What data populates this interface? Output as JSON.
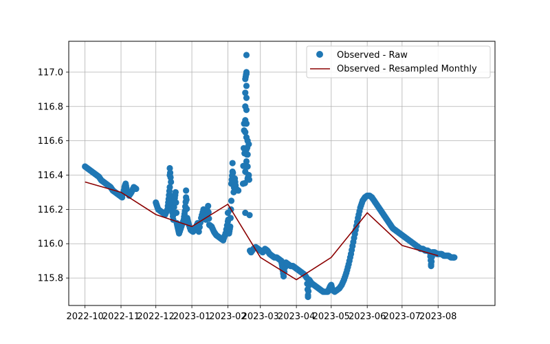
{
  "chart_data": {
    "type": "scatter",
    "title": "",
    "xlabel": "",
    "ylabel": "",
    "xlim": [
      "2022-09-17",
      "2023-09-19"
    ],
    "ylim": [
      115.64,
      117.18
    ],
    "grid": true,
    "legend_position": "top-right",
    "x_ticks": [
      "2022-10",
      "2022-11",
      "2022-12",
      "2023-01",
      "2023-02",
      "2023-03",
      "2023-04",
      "2023-05",
      "2023-06",
      "2023-07",
      "2023-08"
    ],
    "y_ticks": [
      "115.8",
      "116.0",
      "116.2",
      "116.4",
      "116.6",
      "116.8",
      "117.0"
    ],
    "colors": {
      "raw": "#1f77b4",
      "resampled": "#8b0000",
      "grid": "#b0b0b0"
    },
    "series": [
      {
        "name": "Observed - Raw",
        "kind": "scatter",
        "points": [
          [
            "2022-10-01",
            116.45
          ],
          [
            "2022-10-03",
            116.44
          ],
          [
            "2022-10-05",
            116.43
          ],
          [
            "2022-10-07",
            116.42
          ],
          [
            "2022-10-09",
            116.41
          ],
          [
            "2022-10-11",
            116.4
          ],
          [
            "2022-10-13",
            116.39
          ],
          [
            "2022-10-15",
            116.37
          ],
          [
            "2022-10-17",
            116.36
          ],
          [
            "2022-10-19",
            116.35
          ],
          [
            "2022-10-21",
            116.34
          ],
          [
            "2022-10-23",
            116.33
          ],
          [
            "2022-10-25",
            116.31
          ],
          [
            "2022-10-27",
            116.3
          ],
          [
            "2022-10-29",
            116.29
          ],
          [
            "2022-10-31",
            116.28
          ],
          [
            "2022-11-02",
            116.27
          ],
          [
            "2022-11-04",
            116.33
          ],
          [
            "2022-11-05",
            116.35
          ],
          [
            "2022-11-06",
            116.31
          ],
          [
            "2022-11-08",
            116.28
          ],
          [
            "2022-11-10",
            116.3
          ],
          [
            "2022-11-12",
            116.33
          ],
          [
            "2022-11-14",
            116.32
          ],
          [
            "2022-12-01",
            116.24
          ],
          [
            "2022-12-02",
            116.22
          ],
          [
            "2022-12-03",
            116.2
          ],
          [
            "2022-12-05",
            116.19
          ],
          [
            "2022-12-07",
            116.18
          ],
          [
            "2022-12-09",
            116.17
          ],
          [
            "2022-12-11",
            116.2
          ],
          [
            "2022-12-12",
            116.26
          ],
          [
            "2022-12-13",
            116.33
          ],
          [
            "2022-12-13",
            116.4
          ],
          [
            "2022-12-13",
            116.44
          ],
          [
            "2022-12-14",
            116.36
          ],
          [
            "2022-12-14",
            116.28
          ],
          [
            "2022-12-15",
            116.2
          ],
          [
            "2022-12-16",
            116.14
          ],
          [
            "2022-12-17",
            116.25
          ],
          [
            "2022-12-18",
            116.3
          ],
          [
            "2022-12-19",
            116.12
          ],
          [
            "2022-12-20",
            116.09
          ],
          [
            "2022-12-21",
            116.06
          ],
          [
            "2022-12-23",
            116.1
          ],
          [
            "2022-12-25",
            116.14
          ],
          [
            "2022-12-26",
            116.19
          ],
          [
            "2022-12-27",
            116.27
          ],
          [
            "2022-12-27",
            116.31
          ],
          [
            "2022-12-28",
            116.15
          ],
          [
            "2022-12-29",
            116.12
          ],
          [
            "2022-12-31",
            116.08
          ],
          [
            "2023-01-02",
            116.07
          ],
          [
            "2023-01-04",
            116.09
          ],
          [
            "2023-01-06",
            116.12
          ],
          [
            "2023-01-07",
            116.07
          ],
          [
            "2023-01-09",
            116.15
          ],
          [
            "2023-01-11",
            116.2
          ],
          [
            "2023-01-13",
            116.14
          ],
          [
            "2023-01-15",
            116.22
          ],
          [
            "2023-01-16",
            116.11
          ],
          [
            "2023-01-18",
            116.1
          ],
          [
            "2023-01-20",
            116.07
          ],
          [
            "2023-01-22",
            116.05
          ],
          [
            "2023-01-24",
            116.04
          ],
          [
            "2023-01-26",
            116.03
          ],
          [
            "2023-01-28",
            116.02
          ],
          [
            "2023-01-30",
            116.06
          ],
          [
            "2023-02-01",
            116.13
          ],
          [
            "2023-02-01",
            116.18
          ],
          [
            "2023-02-02",
            116.06
          ],
          [
            "2023-02-03",
            116.1
          ],
          [
            "2023-02-04",
            116.25
          ],
          [
            "2023-02-04",
            116.35
          ],
          [
            "2023-02-05",
            116.42
          ],
          [
            "2023-02-05",
            116.47
          ],
          [
            "2023-02-06",
            116.3
          ],
          [
            "2023-02-07",
            116.38
          ],
          [
            "2023-02-08",
            116.32
          ],
          [
            "2023-02-10",
            116.31
          ],
          [
            "2023-02-14",
            116.35
          ],
          [
            "2023-02-15",
            116.66
          ],
          [
            "2023-02-15",
            116.7
          ],
          [
            "2023-02-16",
            116.18
          ],
          [
            "2023-02-16",
            116.42
          ],
          [
            "2023-02-16",
            116.65
          ],
          [
            "2023-02-16",
            116.72
          ],
          [
            "2023-02-16",
            116.8
          ],
          [
            "2023-02-16",
            116.88
          ],
          [
            "2023-02-16",
            116.96
          ],
          [
            "2023-02-17",
            117.0
          ],
          [
            "2023-02-17",
            117.1
          ],
          [
            "2023-02-17",
            116.99
          ],
          [
            "2023-02-17",
            116.92
          ],
          [
            "2023-02-17",
            116.85
          ],
          [
            "2023-02-17",
            116.78
          ],
          [
            "2023-02-17",
            116.7
          ],
          [
            "2023-02-17",
            116.62
          ],
          [
            "2023-02-17",
            116.55
          ],
          [
            "2023-02-17",
            116.48
          ],
          [
            "2023-02-18",
            116.6
          ],
          [
            "2023-02-18",
            116.52
          ],
          [
            "2023-02-18",
            116.45
          ],
          [
            "2023-02-18",
            116.38
          ],
          [
            "2023-02-19",
            116.4
          ],
          [
            "2023-02-19",
            116.58
          ],
          [
            "2023-02-20",
            115.96
          ],
          [
            "2023-02-21",
            115.95
          ],
          [
            "2023-02-23",
            115.97
          ],
          [
            "2023-02-25",
            115.98
          ],
          [
            "2023-02-27",
            115.97
          ],
          [
            "2023-03-01",
            115.96
          ],
          [
            "2023-03-03",
            115.95
          ],
          [
            "2023-03-05",
            115.97
          ],
          [
            "2023-03-07",
            115.96
          ],
          [
            "2023-03-09",
            115.94
          ],
          [
            "2023-03-11",
            115.93
          ],
          [
            "2023-03-13",
            115.92
          ],
          [
            "2023-03-15",
            115.92
          ],
          [
            "2023-03-17",
            115.91
          ],
          [
            "2023-03-19",
            115.9
          ],
          [
            "2023-03-20",
            115.86
          ],
          [
            "2023-03-21",
            115.81
          ],
          [
            "2023-03-23",
            115.89
          ],
          [
            "2023-03-25",
            115.88
          ],
          [
            "2023-03-27",
            115.87
          ],
          [
            "2023-03-29",
            115.87
          ],
          [
            "2023-03-31",
            115.86
          ],
          [
            "2023-04-02",
            115.85
          ],
          [
            "2023-04-04",
            115.84
          ],
          [
            "2023-04-06",
            115.83
          ],
          [
            "2023-04-08",
            115.82
          ],
          [
            "2023-04-10",
            115.8
          ],
          [
            "2023-04-11",
            115.7
          ],
          [
            "2023-04-11",
            115.69
          ],
          [
            "2023-04-12",
            115.79
          ],
          [
            "2023-04-14",
            115.77
          ],
          [
            "2023-04-16",
            115.76
          ],
          [
            "2023-04-18",
            115.75
          ],
          [
            "2023-04-20",
            115.74
          ],
          [
            "2023-04-22",
            115.73
          ],
          [
            "2023-04-24",
            115.72
          ],
          [
            "2023-04-26",
            115.72
          ],
          [
            "2023-04-28",
            115.72
          ],
          [
            "2023-04-30",
            115.75
          ],
          [
            "2023-05-01",
            115.76
          ],
          [
            "2023-05-02",
            115.73
          ],
          [
            "2023-05-04",
            115.72
          ],
          [
            "2023-05-06",
            115.73
          ],
          [
            "2023-05-08",
            115.74
          ],
          [
            "2023-05-10",
            115.76
          ],
          [
            "2023-05-12",
            115.79
          ],
          [
            "2023-05-14",
            115.83
          ],
          [
            "2023-05-16",
            115.88
          ],
          [
            "2023-05-18",
            115.94
          ],
          [
            "2023-05-20",
            116.01
          ],
          [
            "2023-05-22",
            116.08
          ],
          [
            "2023-05-24",
            116.15
          ],
          [
            "2023-05-26",
            116.21
          ],
          [
            "2023-05-28",
            116.25
          ],
          [
            "2023-05-30",
            116.27
          ],
          [
            "2023-06-01",
            116.28
          ],
          [
            "2023-06-03",
            116.28
          ],
          [
            "2023-06-05",
            116.27
          ],
          [
            "2023-06-07",
            116.25
          ],
          [
            "2023-06-09",
            116.23
          ],
          [
            "2023-06-11",
            116.21
          ],
          [
            "2023-06-13",
            116.19
          ],
          [
            "2023-06-15",
            116.17
          ],
          [
            "2023-06-17",
            116.15
          ],
          [
            "2023-06-19",
            116.13
          ],
          [
            "2023-06-21",
            116.11
          ],
          [
            "2023-06-23",
            116.09
          ],
          [
            "2023-06-25",
            116.08
          ],
          [
            "2023-06-27",
            116.07
          ],
          [
            "2023-06-29",
            116.06
          ],
          [
            "2023-07-01",
            116.05
          ],
          [
            "2023-07-03",
            116.04
          ],
          [
            "2023-07-05",
            116.03
          ],
          [
            "2023-07-07",
            116.02
          ],
          [
            "2023-07-09",
            116.01
          ],
          [
            "2023-07-11",
            116.0
          ],
          [
            "2023-07-13",
            115.99
          ],
          [
            "2023-07-15",
            115.98
          ],
          [
            "2023-07-17",
            115.97
          ],
          [
            "2023-07-19",
            115.97
          ],
          [
            "2023-07-21",
            115.96
          ],
          [
            "2023-07-23",
            115.96
          ],
          [
            "2023-07-25",
            115.95
          ],
          [
            "2023-07-26",
            115.88
          ],
          [
            "2023-07-26",
            115.87
          ],
          [
            "2023-07-27",
            115.95
          ],
          [
            "2023-07-29",
            115.95
          ],
          [
            "2023-07-31",
            115.94
          ],
          [
            "2023-08-02",
            115.94
          ],
          [
            "2023-08-04",
            115.94
          ],
          [
            "2023-08-06",
            115.93
          ],
          [
            "2023-08-08",
            115.93
          ],
          [
            "2023-08-10",
            115.93
          ],
          [
            "2023-08-12",
            115.92
          ],
          [
            "2023-08-14",
            115.92
          ],
          [
            "2023-08-15",
            115.92
          ]
        ]
      },
      {
        "name": "Observed - Resampled Monthly",
        "kind": "line",
        "points": [
          [
            "2022-10-01",
            116.36
          ],
          [
            "2022-11-01",
            116.3
          ],
          [
            "2022-12-01",
            116.17
          ],
          [
            "2023-01-01",
            116.1
          ],
          [
            "2023-02-01",
            116.23
          ],
          [
            "2023-03-01",
            115.92
          ],
          [
            "2023-04-01",
            115.79
          ],
          [
            "2023-05-01",
            115.92
          ],
          [
            "2023-06-01",
            116.18
          ],
          [
            "2023-07-01",
            115.99
          ],
          [
            "2023-08-01",
            115.93
          ]
        ]
      }
    ]
  }
}
